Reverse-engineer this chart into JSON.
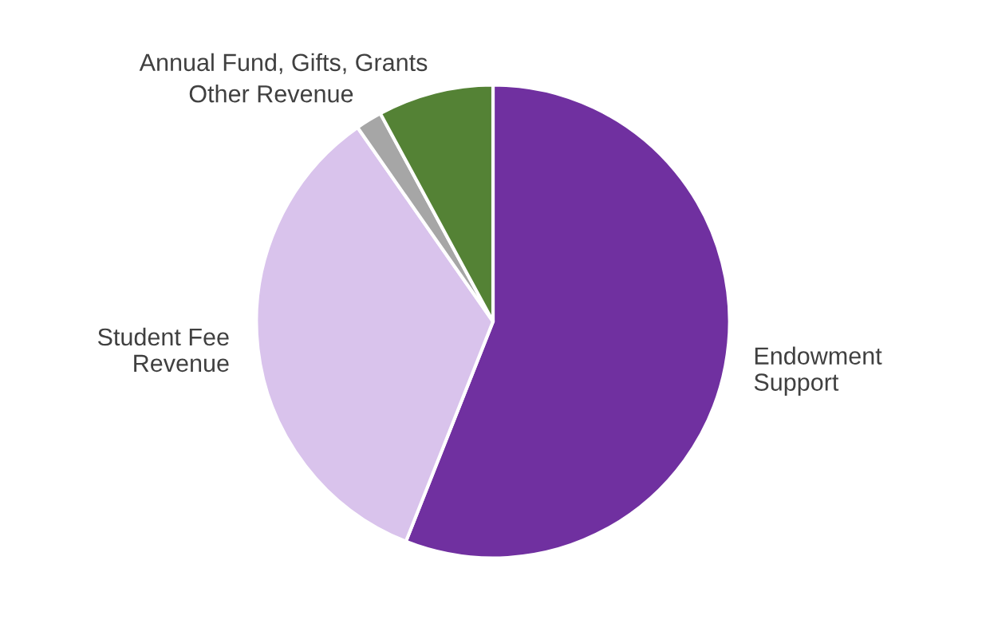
{
  "chart_data": {
    "type": "pie",
    "categories": [
      "Endowment\nSupport",
      "Student Fee\nRevenue",
      "Other Revenue",
      "Annual Fund, Gifts, Grants"
    ],
    "values": [
      56,
      34.3,
      1.8,
      7.9
    ],
    "colors": [
      "#7030a0",
      "#d9c3ec",
      "#a6a6a6",
      "#548235"
    ],
    "legend": false
  }
}
